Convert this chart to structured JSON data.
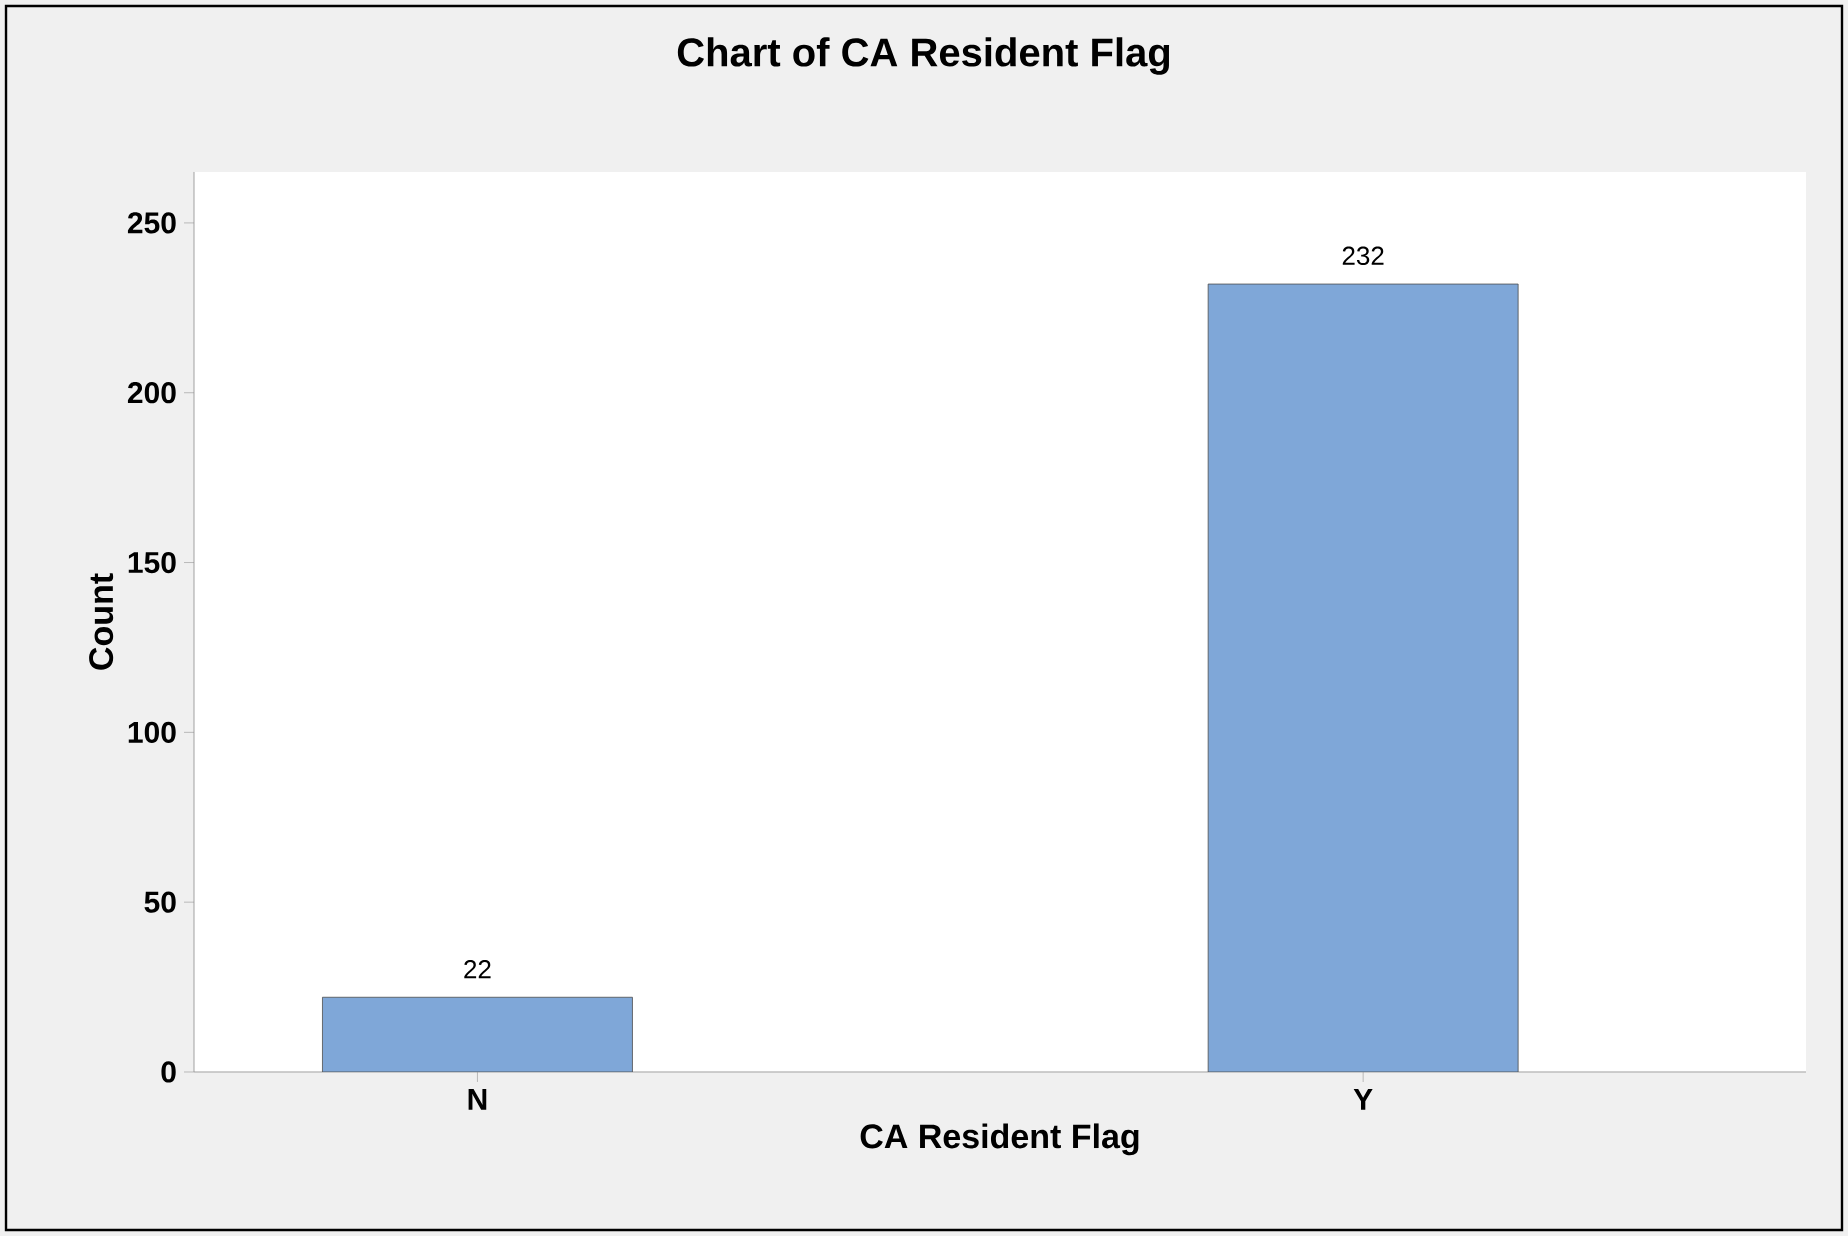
{
  "chart_data": {
    "type": "bar",
    "title": "Chart of CA Resident Flag",
    "xlabel": "CA Resident Flag",
    "ylabel": "Count",
    "categories": [
      "N",
      "Y"
    ],
    "values": [
      22,
      232
    ],
    "color": "#7fa7d8",
    "ylim": [
      0,
      265
    ],
    "yticks": [
      0,
      50,
      100,
      150,
      200,
      250
    ],
    "data_labels": true
  }
}
